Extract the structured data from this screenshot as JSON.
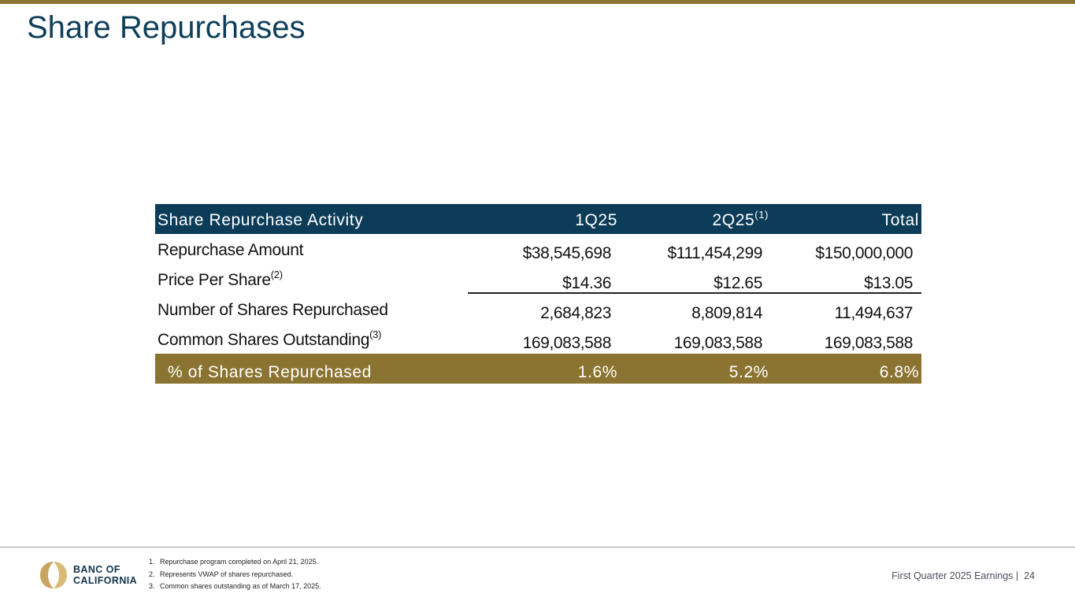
{
  "colors": {
    "brand_navy": "#0c3c58",
    "brand_gold": "#8b7431",
    "title_color": "#0f3e5a"
  },
  "page": {
    "title": "Share Repurchases",
    "footer_label": "First Quarter 2025 Earnings |",
    "page_number": "24"
  },
  "logo": {
    "icon": "banc-of-california-logo-icon",
    "line1": "BANC OF",
    "line2": "CALIFORNIA"
  },
  "table": {
    "header": {
      "label": "Share Repurchase Activity",
      "col1": "1Q25",
      "col2": "2Q25",
      "col2_sup": "(1)",
      "col3": "Total"
    },
    "rows": [
      {
        "label": "Repurchase Amount",
        "sup": "",
        "col1": "$38,545,698",
        "col2": "$111,454,299",
        "col3": "$150,000,000"
      },
      {
        "label": "Price Per Share",
        "sup": "(2)",
        "col1": "$14.36",
        "col2": "$12.65",
        "col3": "$13.05"
      },
      {
        "label": "Number of Shares Repurchased",
        "sup": "",
        "col1": "2,684,823",
        "col2": "8,809,814",
        "col3": "11,494,637"
      },
      {
        "label": "Common Shares Outstanding",
        "sup": "(3)",
        "col1": "169,083,588",
        "col2": "169,083,588",
        "col3": "169,083,588"
      }
    ],
    "total": {
      "label": "% of Shares Repurchased",
      "col1": "1.6%",
      "col2": "5.2%",
      "col3": "6.8%"
    }
  },
  "footnotes": [
    {
      "num": "1.",
      "text": "Repurchase program completed on April 21, 2025."
    },
    {
      "num": "2.",
      "text": "Represents VWAP of shares repurchased."
    },
    {
      "num": "3.",
      "text": "Common shares outstanding as of March 17, 2025."
    }
  ]
}
